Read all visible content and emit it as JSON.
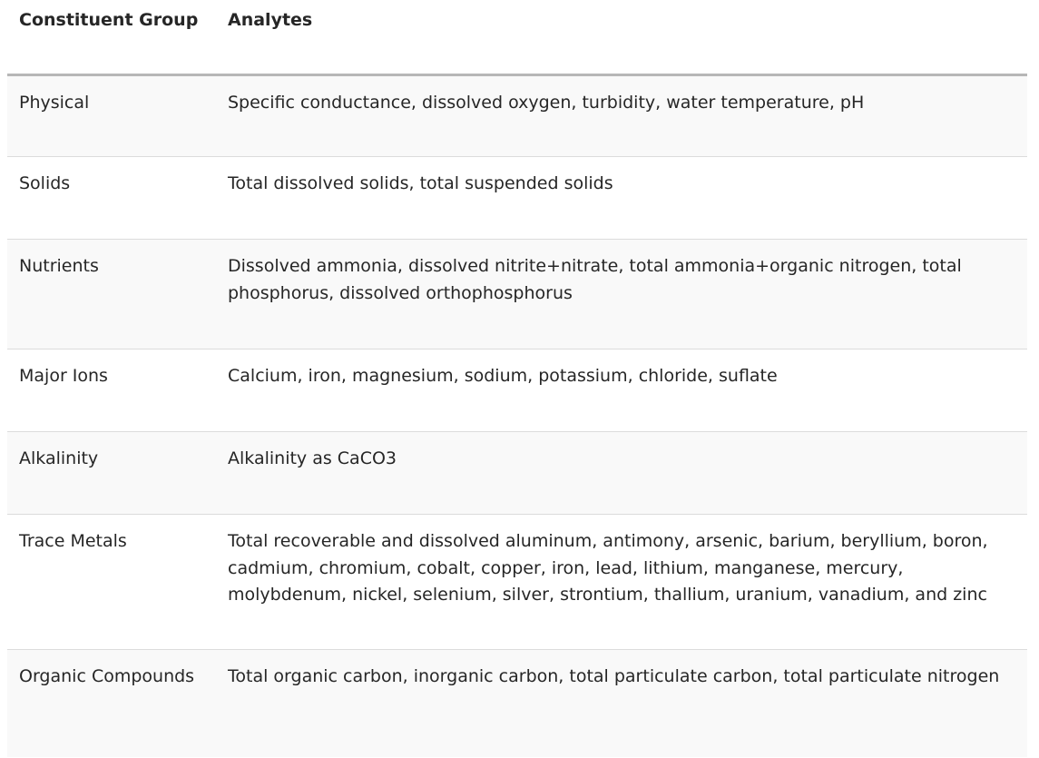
{
  "table": {
    "headers": [
      "Constituent Group",
      "Analytes"
    ],
    "rows": [
      {
        "group": "Physical",
        "analytes": "Specific conductance, dissolved oxygen, turbidity, water temperature, pH"
      },
      {
        "group": "Solids",
        "analytes": "Total dissolved solids, total suspended solids"
      },
      {
        "group": "Nutrients",
        "analytes": "Dissolved ammonia, dissolved nitrite+nitrate, total ammonia+organic nitrogen, total phosphorus, dissolved orthophosphorus"
      },
      {
        "group": "Major Ions",
        "analytes": "Calcium, iron, magnesium, sodium, potassium, chloride, suflate"
      },
      {
        "group": "Alkalinity",
        "analytes": "Alkalinity as CaCO3"
      },
      {
        "group": "Trace Metals",
        "analytes": "Total recoverable and dissolved aluminum, antimony, arsenic, barium, beryllium, boron, cadmium, chromium, cobalt, copper, iron, lead, lithium, manganese, mercury, molybdenum, nickel, selenium, silver, strontium, thallium, uranium, vanadium, and zinc"
      },
      {
        "group": "Organic Compounds",
        "analytes": "Total organic carbon, inorganic carbon, total particulate carbon, total particulate nitrogen"
      }
    ]
  }
}
